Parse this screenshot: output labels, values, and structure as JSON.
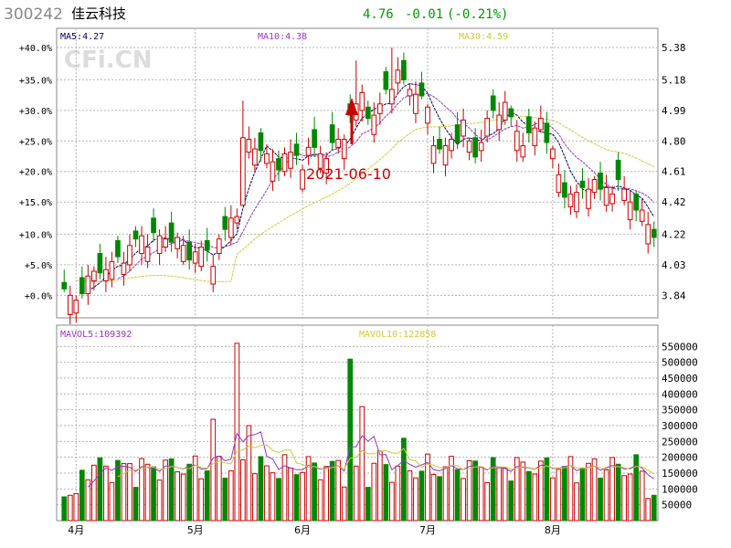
{
  "header": {
    "code": "300242",
    "name": "佳云科技",
    "price": "4.76",
    "change": "-0.01",
    "change_pct": "(-0.21%)",
    "price_color": "#009900"
  },
  "watermark": "CFi.CN",
  "annotation": {
    "text": "2021-06-10",
    "color": "#cc0000"
  },
  "colors": {
    "up": "#cc0000",
    "down": "#008800",
    "ma5": "#000066",
    "ma10": "#9933cc",
    "ma30": "#cccc33",
    "grid": "#b4b4b4",
    "border": "#888888"
  },
  "chart_data": [
    {
      "type": "candlestick",
      "title": "",
      "legend": [
        {
          "label": "MA5:4.27",
          "color": "#000066"
        },
        {
          "label": "MA10:4.38",
          "color": "#9933cc"
        },
        {
          "label": "MA30:4.59",
          "color": "#cccc33"
        }
      ],
      "ylim": [
        3.7,
        5.5
      ],
      "base_price": 3.84,
      "left_ticks": [
        "+40.0%",
        "+35.0%",
        "+30.0%",
        "+25.0%",
        "+20.0%",
        "+15.0%",
        "+10.0%",
        "+5.0%",
        "+0.0%"
      ],
      "left_tick_values": [
        5.38,
        5.18,
        4.99,
        4.8,
        4.61,
        4.42,
        4.22,
        4.03,
        3.84
      ],
      "right_ticks": [
        "5.38",
        "5.18",
        "4.99",
        "4.80",
        "4.61",
        "4.42",
        "4.22",
        "4.03",
        "3.84"
      ],
      "x_labels": [
        "4月",
        "5月",
        "6月",
        "7月",
        "8月"
      ],
      "x_label_index": [
        2,
        22,
        40,
        61,
        82
      ],
      "candles": [],
      "ma30_start": 0
    },
    {
      "type": "bar",
      "title": "",
      "legend": [
        {
          "label": "MAVOL5:109392",
          "color": "#9933cc"
        },
        {
          "label": "MAVOL10:122858",
          "color": "#cccc33"
        }
      ],
      "ylim": [
        0,
        600000
      ],
      "y_ticks": [
        "550000",
        "500000",
        "450000",
        "400000",
        "350000",
        "300000",
        "250000",
        "200000",
        "150000",
        "100000",
        "50000"
      ],
      "y_tick_values": [
        550000,
        500000,
        450000,
        400000,
        350000,
        300000,
        250000,
        200000,
        150000,
        100000,
        50000
      ],
      "volumes": []
    }
  ]
}
